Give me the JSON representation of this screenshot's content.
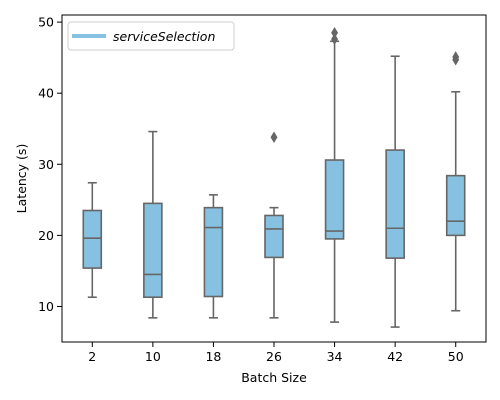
{
  "chart_data": {
    "type": "box",
    "xlabel": "Batch Size",
    "ylabel": "Latency (s)",
    "ylim": [
      5,
      51
    ],
    "yticks": [
      10,
      20,
      30,
      40,
      50
    ],
    "categories": [
      "2",
      "10",
      "18",
      "26",
      "34",
      "42",
      "50"
    ],
    "series": [
      {
        "name": "serviceSelection",
        "color": "#87C1E1",
        "boxes": [
          {
            "category": "2",
            "whisker_low": 11.3,
            "q1": 15.4,
            "median": 19.6,
            "q3": 23.5,
            "whisker_high": 27.4,
            "outliers": []
          },
          {
            "category": "10",
            "whisker_low": 8.4,
            "q1": 11.3,
            "median": 14.5,
            "q3": 24.5,
            "whisker_high": 34.6,
            "outliers": []
          },
          {
            "category": "18",
            "whisker_low": 8.4,
            "q1": 11.4,
            "median": 21.1,
            "q3": 23.9,
            "whisker_high": 25.7,
            "outliers": []
          },
          {
            "category": "26",
            "whisker_low": 8.4,
            "q1": 16.9,
            "median": 20.9,
            "q3": 22.8,
            "whisker_high": 23.9,
            "outliers": [
              33.8
            ]
          },
          {
            "category": "34",
            "whisker_low": 7.8,
            "q1": 19.5,
            "median": 20.6,
            "q3": 30.6,
            "whisker_high": 47.3,
            "outliers": [
              47.6,
              48.5
            ]
          },
          {
            "category": "42",
            "whisker_low": 7.1,
            "q1": 16.8,
            "median": 21.0,
            "q3": 32.0,
            "whisker_high": 45.2,
            "outliers": []
          },
          {
            "category": "50",
            "whisker_low": 9.4,
            "q1": 20.0,
            "median": 22.0,
            "q3": 28.4,
            "whisker_high": 40.2,
            "outliers": [
              44.7,
              45.1
            ]
          }
        ]
      }
    ],
    "legend_position": "top-left",
    "box_color": "#87C1E1",
    "line_color": "#666666",
    "grid": false
  }
}
